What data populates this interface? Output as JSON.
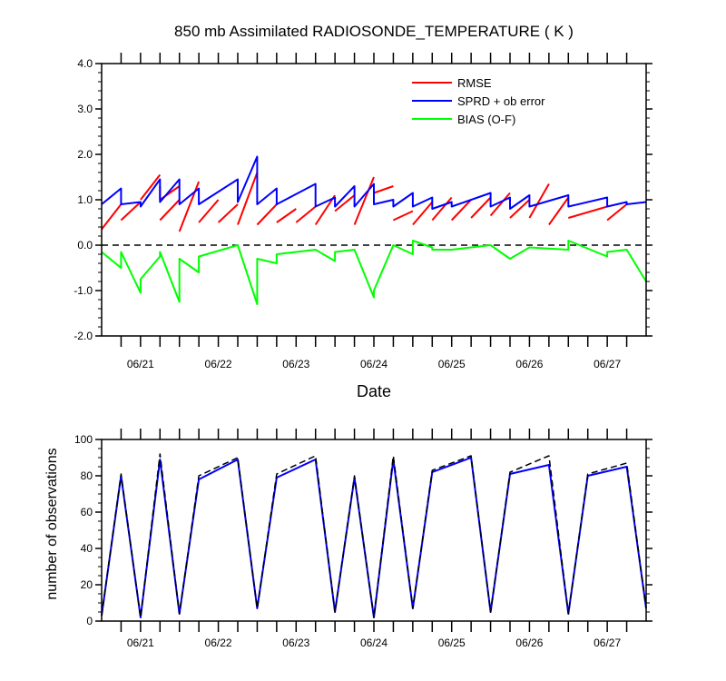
{
  "chart_data": [
    {
      "type": "line",
      "title": "850 mb Assimilated RADIOSONDE_TEMPERATURE ( K )",
      "xlabel": "Date",
      "ylabel": "",
      "xlim": [
        0,
        7.0
      ],
      "ylim": [
        -2.0,
        4.0
      ],
      "x_tick_values": [
        0.5,
        1.5,
        2.5,
        3.5,
        4.5,
        5.5,
        6.5
      ],
      "x_tick_labels": [
        "06/21",
        "06/22",
        "06/23",
        "06/24",
        "06/25",
        "06/26",
        "06/27"
      ],
      "y_tick_labels": [
        "4.0",
        "3.0",
        "2.0",
        "1.0",
        "0.0",
        "-1.0",
        "-2.0"
      ],
      "legend_position": "top-right",
      "reference_line": {
        "y": 0.0,
        "style": "dashed",
        "color": "#000000"
      },
      "series": [
        {
          "name": "RMSE",
          "color": "#ff0000",
          "segments": [
            {
              "x": [
                0.0,
                0.25
              ],
              "y": [
                0.35,
                0.9
              ]
            },
            {
              "x": [
                0.25,
                0.5
              ],
              "y": [
                0.55,
                0.95
              ]
            },
            {
              "x": [
                0.5,
                0.75
              ],
              "y": [
                1.0,
                1.55
              ]
            },
            {
              "x": [
                0.75,
                1.0
              ],
              "y": [
                1.0,
                1.3
              ]
            },
            {
              "x": [
                0.75,
                0.75
              ],
              "y": [
                1.3,
                1.0
              ]
            },
            {
              "x": [
                0.75,
                1.0
              ],
              "y": [
                0.55,
                1.0
              ]
            },
            {
              "x": [
                1.0,
                1.25
              ],
              "y": [
                0.3,
                1.4
              ]
            },
            {
              "x": [
                1.25,
                1.5
              ],
              "y": [
                0.5,
                1.0
              ]
            },
            {
              "x": [
                1.5,
                1.75
              ],
              "y": [
                0.5,
                0.9
              ]
            },
            {
              "x": [
                1.75,
                2.0
              ],
              "y": [
                0.45,
                1.6
              ]
            },
            {
              "x": [
                2.0,
                2.25
              ],
              "y": [
                0.45,
                0.9
              ]
            },
            {
              "x": [
                2.25,
                2.5
              ],
              "y": [
                0.5,
                0.8
              ]
            },
            {
              "x": [
                2.5,
                2.75
              ],
              "y": [
                0.5,
                0.85
              ]
            },
            {
              "x": [
                2.75,
                3.0
              ],
              "y": [
                0.45,
                1.1
              ]
            },
            {
              "x": [
                3.0,
                3.25
              ],
              "y": [
                0.75,
                1.1
              ]
            },
            {
              "x": [
                3.25,
                3.5
              ],
              "y": [
                0.45,
                1.5
              ]
            },
            {
              "x": [
                3.5,
                3.75
              ],
              "y": [
                1.15,
                1.3
              ]
            },
            {
              "x": [
                3.75,
                4.0
              ],
              "y": [
                0.55,
                0.75
              ]
            },
            {
              "x": [
                4.0,
                4.25
              ],
              "y": [
                0.45,
                0.95
              ]
            },
            {
              "x": [
                4.25,
                4.5
              ],
              "y": [
                0.55,
                1.05
              ]
            },
            {
              "x": [
                4.5,
                4.75
              ],
              "y": [
                0.55,
                1.0
              ]
            },
            {
              "x": [
                4.75,
                5.0
              ],
              "y": [
                0.6,
                1.05
              ]
            },
            {
              "x": [
                5.0,
                5.25
              ],
              "y": [
                0.65,
                1.15
              ]
            },
            {
              "x": [
                5.25,
                5.5
              ],
              "y": [
                0.6,
                1.0
              ]
            },
            {
              "x": [
                5.5,
                5.75
              ],
              "y": [
                0.6,
                1.35
              ]
            },
            {
              "x": [
                5.75,
                6.0
              ],
              "y": [
                0.45,
                1.05
              ]
            },
            {
              "x": [
                6.0,
                6.5
              ],
              "y": [
                0.6,
                0.85
              ]
            },
            {
              "x": [
                6.5,
                6.75
              ],
              "y": [
                0.55,
                0.9
              ]
            }
          ]
        },
        {
          "name": "SPRD + ob error",
          "color": "#0000ff",
          "segments": [
            {
              "x": [
                0.0,
                0.25,
                0.25,
                0.5,
                0.5,
                0.75,
                0.75,
                1.0,
                1.0,
                1.25,
                1.25,
                1.75,
                1.75,
                2.0,
                2.0,
                2.25,
                2.25,
                2.75,
                2.75,
                3.0,
                3.0,
                3.25,
                3.25,
                3.5,
                3.5,
                3.75,
                3.75,
                4.0,
                4.0,
                4.25,
                4.25,
                4.5,
                4.5,
                5.0,
                5.0,
                5.25,
                5.25,
                5.5,
                5.5,
                6.0,
                6.0,
                6.5,
                6.5,
                6.75,
                6.75,
                7.0
              ],
              "y": [
                0.9,
                1.25,
                0.9,
                0.95,
                0.85,
                1.45,
                0.95,
                1.45,
                0.9,
                1.25,
                0.9,
                1.45,
                0.95,
                1.95,
                0.9,
                1.25,
                0.9,
                1.35,
                0.85,
                1.05,
                0.85,
                1.3,
                0.85,
                1.35,
                0.9,
                1.0,
                0.85,
                1.15,
                0.85,
                1.05,
                0.8,
                0.95,
                0.85,
                1.15,
                0.85,
                1.05,
                0.8,
                1.1,
                0.85,
                1.1,
                0.85,
                1.05,
                0.85,
                0.95,
                0.9,
                0.95
              ]
            }
          ]
        },
        {
          "name": "BIAS (O-F)",
          "color": "#00ff00",
          "segments": [
            {
              "x": [
                0.0,
                0.25,
                0.25,
                0.5,
                0.5,
                0.75,
                0.75,
                1.0,
                1.0,
                1.25,
                1.25,
                1.75,
                1.75,
                2.0,
                2.0,
                2.25,
                2.25,
                2.75,
                2.75,
                3.0,
                3.0,
                3.25,
                3.25,
                3.5,
                3.5,
                3.75,
                3.75,
                4.0,
                4.0,
                4.25,
                4.25,
                4.5,
                4.5,
                5.0,
                5.0,
                5.25,
                5.25,
                5.5,
                5.5,
                6.0,
                6.0,
                6.5,
                6.5,
                6.75,
                6.75,
                7.0
              ],
              "y": [
                -0.15,
                -0.5,
                -0.15,
                -1.05,
                -0.75,
                -0.25,
                -0.15,
                -1.25,
                -0.3,
                -0.6,
                -0.25,
                0.0,
                0.0,
                -1.3,
                -0.3,
                -0.4,
                -0.2,
                -0.1,
                -0.1,
                -0.35,
                -0.15,
                -0.1,
                -0.1,
                -1.15,
                -1.0,
                0.0,
                0.0,
                -0.2,
                0.1,
                -0.05,
                -0.1,
                -0.1,
                -0.1,
                0.0,
                0.0,
                -0.3,
                -0.3,
                -0.05,
                -0.05,
                -0.1,
                0.1,
                -0.25,
                -0.15,
                -0.1,
                -0.1,
                -0.8
              ]
            }
          ]
        }
      ]
    },
    {
      "type": "line",
      "title": "",
      "xlabel": "",
      "ylabel": "number of observations",
      "xlim": [
        0,
        7.0
      ],
      "ylim": [
        0,
        100
      ],
      "x_tick_values": [
        0.5,
        1.5,
        2.5,
        3.5,
        4.5,
        5.5,
        6.5
      ],
      "x_tick_labels": [
        "06/21",
        "06/22",
        "06/23",
        "06/24",
        "06/25",
        "06/26",
        "06/27"
      ],
      "y_tick_labels": [
        "100",
        "80",
        "60",
        "40",
        "20",
        "0"
      ],
      "series": [
        {
          "name": "",
          "color": "#0000ff",
          "style": "solid",
          "x": [
            0.0,
            0.25,
            0.5,
            0.75,
            1.0,
            1.25,
            1.75,
            2.0,
            2.25,
            2.75,
            3.0,
            3.25,
            3.5,
            3.75,
            4.0,
            4.25,
            4.75,
            5.0,
            5.25,
            5.75,
            6.0,
            6.25,
            6.75,
            7.0
          ],
          "y": [
            3,
            80,
            2,
            89,
            4,
            78,
            89,
            7,
            79,
            89,
            5,
            79,
            2,
            89,
            7,
            82,
            90,
            5,
            81,
            86,
            4,
            80,
            85,
            7
          ]
        },
        {
          "name": "",
          "color": "#000000",
          "style": "dashed",
          "x": [
            0.0,
            0.25,
            0.5,
            0.75,
            1.0,
            1.25,
            1.75,
            2.0,
            2.25,
            2.75,
            3.0,
            3.25,
            3.5,
            3.75,
            4.0,
            4.25,
            4.75,
            5.0,
            5.25,
            5.75,
            6.0,
            6.25,
            6.75,
            7.0
          ],
          "y": [
            3,
            81,
            2,
            92,
            4,
            80,
            90,
            7,
            81,
            91,
            5,
            80,
            2,
            91,
            7,
            83,
            91,
            5,
            82,
            91,
            4,
            81,
            87,
            7
          ]
        }
      ]
    }
  ]
}
